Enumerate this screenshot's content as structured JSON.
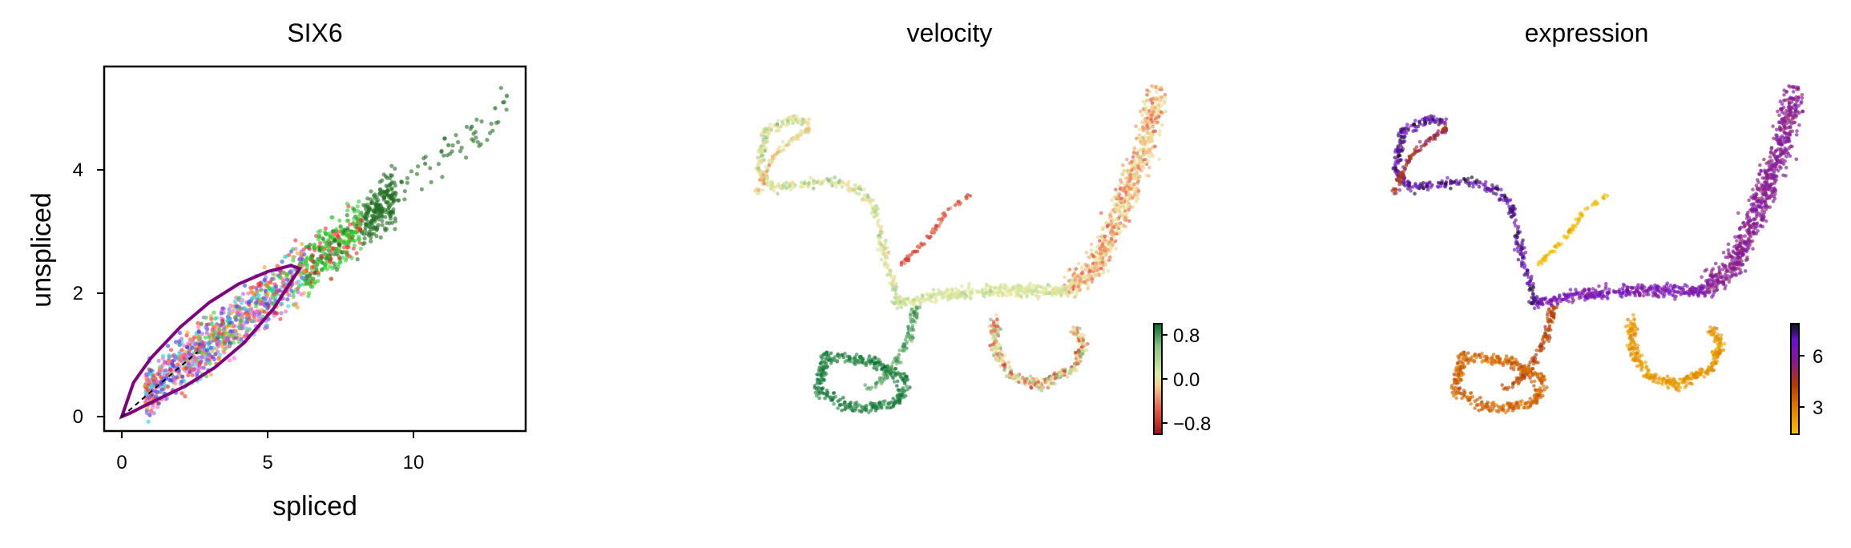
{
  "panels": {
    "scatter": {
      "title": "SIX6",
      "xlabel": "spliced",
      "ylabel": "unspliced",
      "xticks": [
        "0",
        "5",
        "10"
      ],
      "yticks": [
        "0",
        "2",
        "4"
      ]
    },
    "velocity": {
      "title": "velocity",
      "colorbar_ticks": [
        "0.8",
        "0.0",
        "−0.8"
      ]
    },
    "expression": {
      "title": "expression",
      "colorbar_ticks": [
        "6",
        "3"
      ]
    }
  },
  "colors": {
    "velocity_cmap": [
      "#a50f15",
      "#e5533d",
      "#f7d18a",
      "#dcec9d",
      "#86c281",
      "#006d2c"
    ],
    "expression_cmap": [
      "#f2c100",
      "#e07a00",
      "#b23a00",
      "#8a1a8c",
      "#6a0fd6",
      "#111111"
    ],
    "dynamics_curve": "#800080",
    "cluster_palette": [
      "#ff2a2a",
      "#2ad12a",
      "#3a3af0",
      "#2ad1d1",
      "#f0a020",
      "#ff60c0",
      "#9a60e0",
      "#1f6e1f",
      "#8a4a20"
    ]
  },
  "chart_data": [
    {
      "type": "scatter",
      "title": "SIX6",
      "xlabel": "spliced",
      "ylabel": "unspliced",
      "xlim": [
        -0.6,
        13.8
      ],
      "ylim": [
        -0.3,
        5.7
      ],
      "xticks": [
        0,
        5,
        10
      ],
      "yticks": [
        0,
        2,
        4
      ],
      "grid": false,
      "points_summary": "cells colored by cluster; dense cloud from (1,0.3) to (9,3.5), sparse tail to (13,5.2)",
      "x": [
        1.2,
        2.0,
        2.8,
        3.4,
        4.0,
        4.6,
        5.2,
        5.8,
        6.4,
        7.0,
        7.6,
        8.2,
        9.0,
        9.6,
        10.4,
        11.2,
        12.0,
        12.8,
        13.2
      ],
      "y": [
        0.45,
        0.8,
        1.1,
        1.35,
        1.6,
        1.85,
        2.05,
        2.3,
        2.55,
        2.75,
        3.0,
        3.25,
        3.55,
        3.8,
        4.1,
        4.4,
        4.7,
        5.0,
        5.2
      ],
      "fit_curve": {
        "upper_branch": {
          "x": [
            0.0,
            0.4,
            1.0,
            2.0,
            3.0,
            4.0,
            5.0,
            5.8,
            6.1
          ],
          "y": [
            0.0,
            0.55,
            0.95,
            1.45,
            1.85,
            2.15,
            2.35,
            2.45,
            2.4
          ]
        },
        "lower_branch": {
          "x": [
            6.1,
            5.2,
            4.2,
            3.2,
            2.2,
            1.4,
            0.8,
            0.3,
            0.0
          ],
          "y": [
            2.4,
            1.75,
            1.2,
            0.8,
            0.5,
            0.32,
            0.18,
            0.06,
            0.0
          ]
        }
      }
    },
    {
      "type": "scatter",
      "title": "velocity",
      "colorbar": {
        "ticks": [
          0.8,
          0.0,
          -0.8
        ],
        "range": [
          -1.0,
          1.0
        ]
      }
    },
    {
      "type": "scatter",
      "title": "expression",
      "colorbar": {
        "ticks": [
          6,
          3
        ],
        "range": [
          1.5,
          8.0
        ]
      }
    }
  ]
}
